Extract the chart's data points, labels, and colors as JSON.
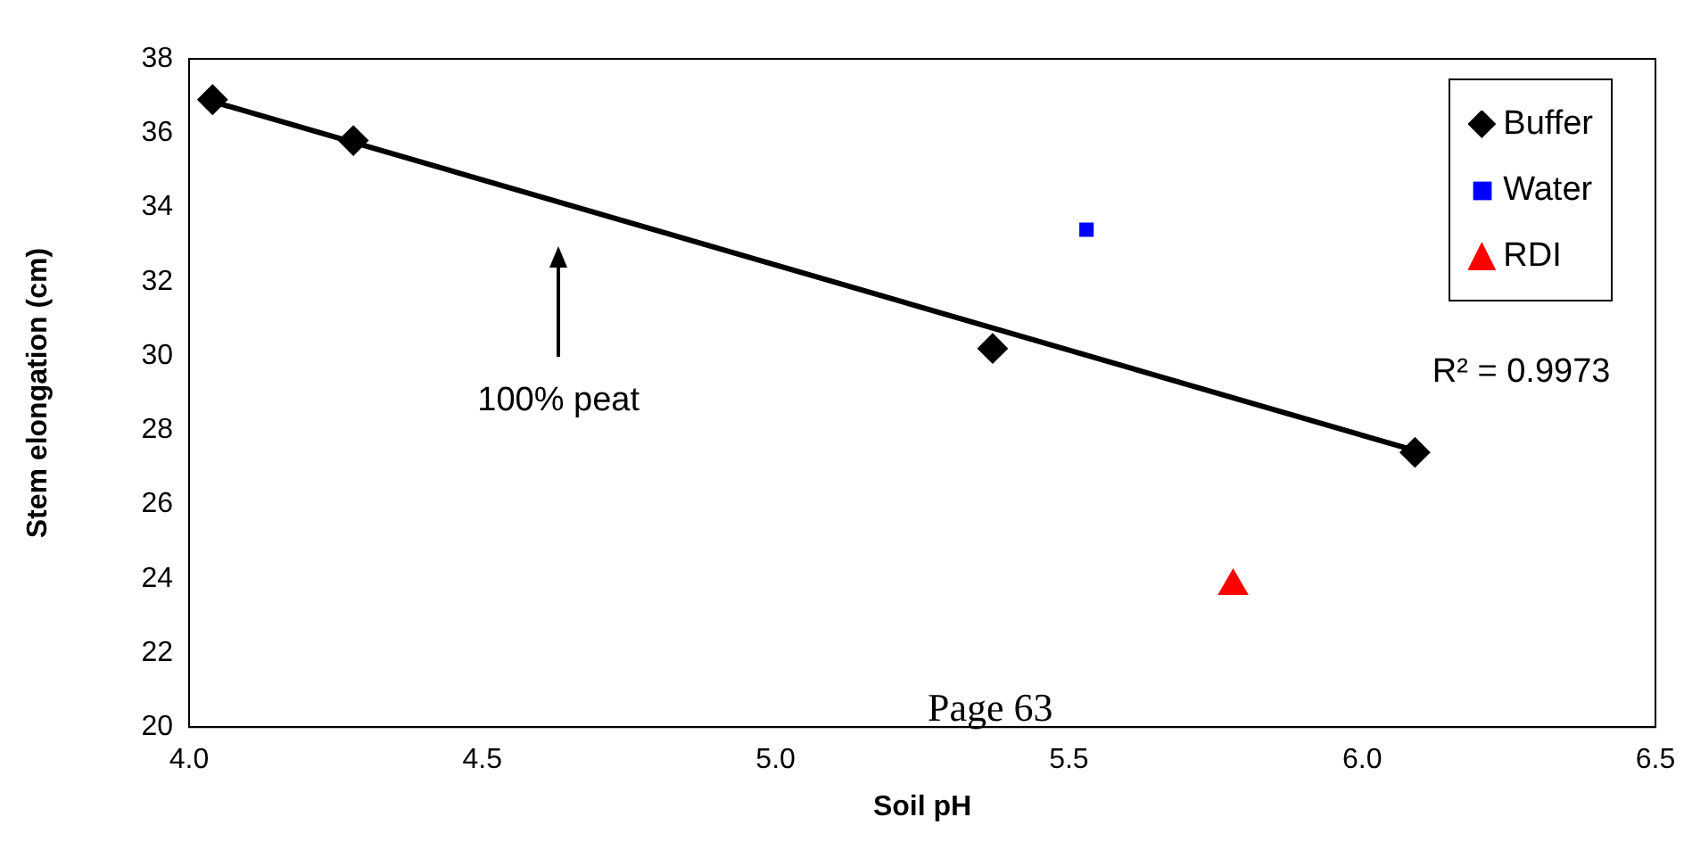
{
  "chart_data": {
    "type": "scatter",
    "xlabel": "Soil pH",
    "ylabel": "Stem elongation (cm)",
    "xlim": [
      4.0,
      6.5
    ],
    "xticks": [
      {
        "value": 4.0,
        "label": "4.0"
      },
      {
        "value": 4.5,
        "label": "4.5"
      },
      {
        "value": 5.0,
        "label": "5.0"
      },
      {
        "value": 5.5,
        "label": "5.5"
      },
      {
        "value": 6.0,
        "label": "6.0"
      },
      {
        "value": 6.5,
        "label": "6.5"
      }
    ],
    "ylim": [
      20,
      38
    ],
    "yticks": [
      20,
      22,
      24,
      26,
      28,
      30,
      32,
      34,
      36,
      38
    ],
    "grid": false,
    "legend": "top right",
    "series": [
      {
        "name": "Buffer",
        "color": "#000000",
        "marker": "diamond",
        "x": [
          4.04,
          4.28,
          5.37,
          6.09
        ],
        "values": [
          36.9,
          35.8,
          30.2,
          27.4
        ]
      },
      {
        "name": "Water",
        "color": "#0000ff",
        "marker": "square",
        "x": [
          5.53
        ],
        "values": [
          33.4
        ]
      },
      {
        "name": "RDI",
        "color": "#ff0000",
        "marker": "triangle",
        "x": [
          5.78
        ],
        "values": [
          23.8
        ]
      },
      {
        "type": "line",
        "color": "#000000",
        "marker": "none",
        "line_style": "solid",
        "x": [
          4.04,
          6.09
        ],
        "values": [
          36.85,
          27.45
        ]
      }
    ],
    "annotations": [
      "100% peat",
      "R² = 0.9973",
      "Page 63"
    ]
  }
}
